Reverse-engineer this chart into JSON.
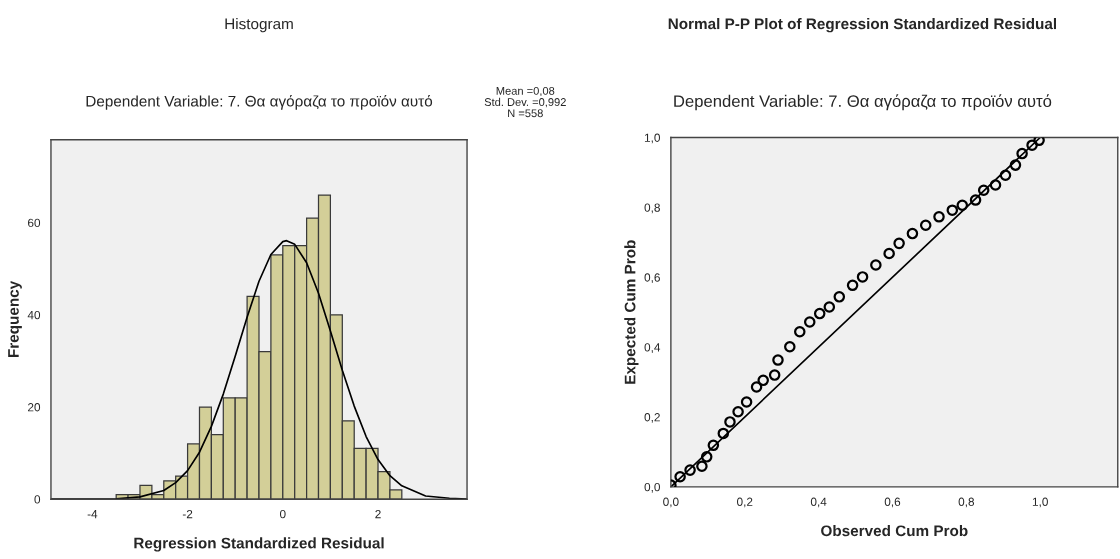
{
  "chart_data": [
    {
      "type": "histogram",
      "title": "Histogram",
      "subtitle": "Dependent Variable: 7. Θα αγόραζα το προϊόν αυτό",
      "xlabel": "Regression Standardized Residual",
      "ylabel": "Frequency",
      "bins": [
        -3.5,
        -3.25,
        -3.0,
        -2.75,
        -2.5,
        -2.25,
        -2.0,
        -1.75,
        -1.5,
        -1.25,
        -1.0,
        -0.75,
        -0.5,
        -0.25,
        0.0,
        0.25,
        0.5,
        0.75,
        1.0,
        1.25,
        1.5,
        1.75,
        2.0,
        2.25,
        2.5
      ],
      "series": [
        {
          "color": "#d3cf98",
          "values": [
            1,
            1,
            3,
            1,
            4,
            5,
            12,
            20,
            14,
            22,
            22,
            44,
            32,
            53,
            55,
            55,
            61,
            66,
            40,
            17,
            11,
            11,
            6,
            2
          ]
        },
        {
          "type": "line",
          "color": "#000000",
          "x": [
            -4.87,
            -4.5,
            -4.0,
            -3.5,
            -3.0,
            -2.5,
            -2.25,
            -2.0,
            -1.75,
            -1.5,
            -1.25,
            -1.0,
            -0.75,
            -0.5,
            -0.25,
            0.0,
            0.08,
            0.25,
            0.5,
            0.75,
            1.0,
            1.25,
            1.5,
            1.75,
            2.0,
            2.25,
            2.5,
            3.0,
            3.5,
            3.87
          ],
          "values": [
            0,
            0,
            0,
            0.1,
            0.5,
            1.9,
            3.6,
            6.2,
            10.2,
            15.8,
            22.8,
            31.0,
            39.5,
            47.3,
            53.1,
            55.9,
            56.1,
            55.3,
            51.3,
            44.7,
            36.5,
            28.0,
            20.2,
            13.6,
            8.6,
            5.1,
            2.9,
            0.7,
            0.2,
            0
          ]
        }
      ],
      "xlim": [
        -4.87,
        3.87
      ],
      "xticks": [
        -4,
        -2,
        0,
        2
      ],
      "ylim": [
        0,
        78
      ],
      "yticks": [
        0,
        20,
        40,
        60
      ],
      "annotations": [
        "Mean =0,08",
        "Std. Dev. =0,992",
        "N =558"
      ]
    },
    {
      "type": "scatter",
      "title": "Normal P-P Plot of Regression Standardized Residual",
      "subtitle": "Dependent Variable: 7. Θα αγόραζα το προϊόν αυτό",
      "xlabel": "Observed Cum Prob",
      "ylabel": "Expected Cum Prob",
      "series": [
        {
          "type": "line",
          "color": "#000000",
          "x": [
            0,
            1
          ],
          "values": [
            0,
            1
          ]
        },
        {
          "color": "#000000",
          "marker": "circle",
          "x": [
            0.0,
            0.025,
            0.052,
            0.084,
            0.097,
            0.115,
            0.142,
            0.16,
            0.182,
            0.205,
            0.232,
            0.25,
            0.281,
            0.29,
            0.322,
            0.349,
            0.376,
            0.403,
            0.429,
            0.456,
            0.492,
            0.519,
            0.555,
            0.591,
            0.618,
            0.654,
            0.69,
            0.726,
            0.762,
            0.789,
            0.825,
            0.847,
            0.879,
            0.906,
            0.933,
            0.951,
            0.978,
            0.997
          ],
          "values": [
            0.005,
            0.029,
            0.048,
            0.059,
            0.086,
            0.119,
            0.153,
            0.186,
            0.215,
            0.243,
            0.286,
            0.305,
            0.32,
            0.363,
            0.401,
            0.444,
            0.472,
            0.496,
            0.515,
            0.544,
            0.577,
            0.601,
            0.635,
            0.668,
            0.697,
            0.725,
            0.749,
            0.773,
            0.792,
            0.806,
            0.821,
            0.849,
            0.864,
            0.892,
            0.921,
            0.954,
            0.978,
            0.992
          ]
        }
      ],
      "xlim": [
        0,
        1.21
      ],
      "xticks": [
        {
          "value": 0,
          "label": "0,0"
        },
        {
          "value": 0.2,
          "label": "0,2"
        },
        {
          "value": 0.4,
          "label": "0,4"
        },
        {
          "value": 0.6,
          "label": "0,6"
        },
        {
          "value": 0.8,
          "label": "0,8"
        },
        {
          "value": 1.0,
          "label": "1,0"
        }
      ],
      "ylim": [
        0,
        1.0
      ],
      "yticks": [
        {
          "value": 0,
          "label": "0,0"
        },
        {
          "value": 0.2,
          "label": "0,2"
        },
        {
          "value": 0.4,
          "label": "0,4"
        },
        {
          "value": 0.6,
          "label": "0,6"
        },
        {
          "value": 0.8,
          "label": "0,8"
        },
        {
          "value": 1.0,
          "label": "1,0"
        }
      ]
    }
  ]
}
